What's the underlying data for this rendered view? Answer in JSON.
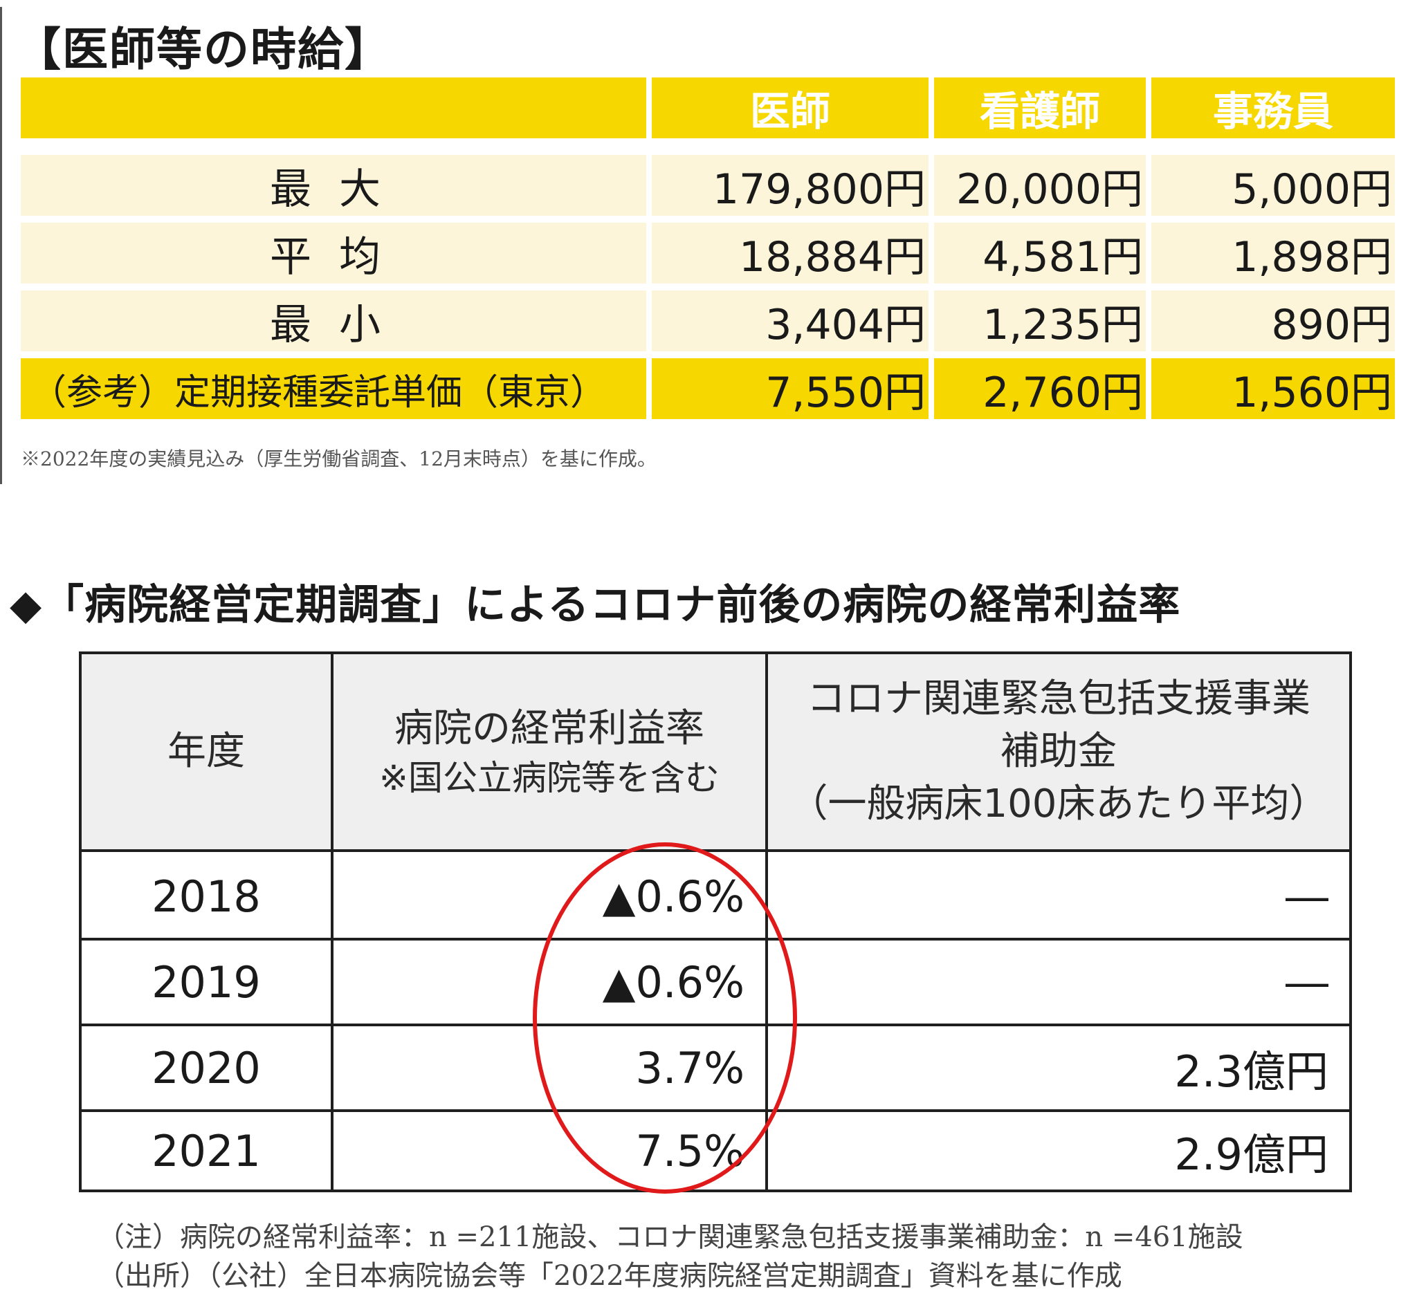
{
  "wage": {
    "title": "【医師等の時給】",
    "headers": [
      "医師",
      "看護師",
      "事務員"
    ],
    "rows": [
      {
        "label": "最大",
        "values": [
          "179,800円",
          "20,000円",
          "5,000円"
        ]
      },
      {
        "label": "平均",
        "values": [
          "18,884円",
          "4,581円",
          "1,898円"
        ]
      },
      {
        "label": "最小",
        "values": [
          "3,404円",
          "1,235円",
          "890円"
        ]
      }
    ],
    "reference": {
      "label": "（参考）定期接種委託単価（東京）",
      "values": [
        "7,550円",
        "2,760円",
        "1,560円"
      ]
    },
    "note": "※2022年度の実績見込み（厚生労働省調査、12月末時点）を基に作成。"
  },
  "profit": {
    "title": "◆「病院経営定期調査」によるコロナ前後の病院の経常利益率",
    "headers": {
      "year": "年度",
      "rate_line1": "病院の経常利益率",
      "rate_line2": "※国公立病院等を含む",
      "subsidy_line1": "コロナ関連緊急包括支援事業",
      "subsidy_line2": "補助金",
      "subsidy_line3": "（一般病床100床あたり平均）"
    },
    "rows": [
      {
        "year": "2018",
        "rate": "▲0.6%",
        "subsidy": "―"
      },
      {
        "year": "2019",
        "rate": "▲0.6%",
        "subsidy": "―"
      },
      {
        "year": "2020",
        "rate": "3.7%",
        "subsidy": "2.3億円"
      },
      {
        "year": "2021",
        "rate": "7.5%",
        "subsidy": "2.9億円"
      }
    ],
    "note1": "（注）病院の経常利益率：n =211施設、コロナ関連緊急包括支援事業補助金：n =461施設",
    "note2": "（出所）（公社）全日本病院協会等「2022年度病院経営定期調査」資料を基に作成"
  },
  "colors": {
    "yellow": "#f6d800",
    "cream": "#fdf5d9",
    "circle": "#e01a1a"
  }
}
